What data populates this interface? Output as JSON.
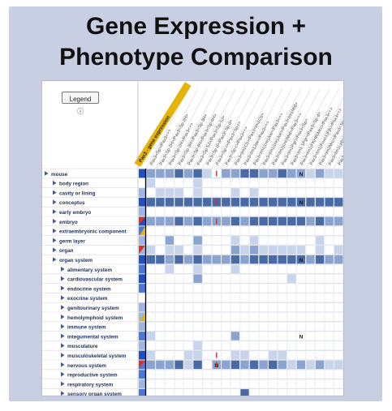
{
  "title_line1": "Gene Expression +",
  "title_line2": "Phenotype Comparison",
  "legend_label": "Legend ⓘ",
  "highlight_label": "Pax3 - gene expression",
  "column_labels": [
    "Pax3<Sp>/Pax3<+>",
    "Pax3<Sp-2H>/Pax3<Sp-2H>",
    "Pax3<Sp-2H>/Pax3<+>",
    "Pax3<Sp-3H>/Pax3<Sp-3H>",
    "Pax3<Sp-4H>/Pax3<Sp-4H>",
    "Pax3<Sp-5J>/Pax3<Sp-5J>",
    "Pax3<Sp-d>/Pax3<Sp-d>",
    "Pax3<Sp-r>/Pax3<Sp-r>",
    "Pax3<Sp-r>/Pax3<+>",
    "Pax3<tm1Cb>/Pax3<tm1Cb>",
    "Pax3<tm1Jae>/Pax3<+>",
    "Pax3<tm1(cre)Joe>/Pax3<+>",
    "Pax3<tm1(cre)Joe>/Pax3<tm1Mid>",
    "Pax3<tm2(cre)Mid>/Pax3<+>",
    "Pax3<tm1Pgr>/Pax3<Sp>",
    "Pax3<tm1.1Pgr>/Pax3<Sp-d>",
    "Pax3<tm1(FKHR)Mrc>/Pax3<+>",
    "Pax3<tm1(Foxo1)Fjb>/Pax3<+>",
    "Pax3<tm2Mrc>/Pax3<Sp>",
    "Pax3<tm1Lpb>/Pax3<Sp>",
    "Pax3<tm1Lpb>/Pax3<+>"
  ],
  "rows": [
    {
      "label": "mouse",
      "indent": 0,
      "expand_icon": "triangle-right-icon"
    },
    {
      "label": "body region",
      "indent": 1,
      "expand_icon": "triangle-right-icon"
    },
    {
      "label": "cavity or lining",
      "indent": 1,
      "expand_icon": "triangle-right-icon"
    },
    {
      "label": "conceptus",
      "indent": 1,
      "expand_icon": "triangle-right-icon"
    },
    {
      "label": "early embryo",
      "indent": 1,
      "expand_icon": "triangle-right-icon"
    },
    {
      "label": "embryo",
      "indent": 1,
      "expand_icon": "triangle-right-icon"
    },
    {
      "label": "extraembryonic component",
      "indent": 1,
      "expand_icon": "triangle-right-icon"
    },
    {
      "label": "germ layer",
      "indent": 1,
      "expand_icon": "triangle-right-icon"
    },
    {
      "label": "organ",
      "indent": 1,
      "expand_icon": "triangle-right-icon"
    },
    {
      "label": "organ system",
      "indent": 1,
      "expand_icon": "triangle-right-icon"
    },
    {
      "label": "alimentary system",
      "indent": 2,
      "expand_icon": "triangle-right-icon"
    },
    {
      "label": "cardiovascular system",
      "indent": 2,
      "expand_icon": "triangle-right-icon"
    },
    {
      "label": "endocrine system",
      "indent": 2,
      "expand_icon": "triangle-right-icon"
    },
    {
      "label": "exocrine system",
      "indent": 2,
      "expand_icon": "triangle-right-icon"
    },
    {
      "label": "genitourinary system",
      "indent": 2,
      "expand_icon": "triangle-right-icon"
    },
    {
      "label": "hemolymphoid system",
      "indent": 2,
      "expand_icon": "triangle-right-icon"
    },
    {
      "label": "immune system",
      "indent": 2,
      "expand_icon": "triangle-right-icon"
    },
    {
      "label": "integumental system",
      "indent": 2,
      "expand_icon": "triangle-right-icon"
    },
    {
      "label": "musculature",
      "indent": 2,
      "expand_icon": "triangle-right-icon"
    },
    {
      "label": "musculoskeletal system",
      "indent": 2,
      "expand_icon": "triangle-right-icon"
    },
    {
      "label": "nervous system",
      "indent": 2,
      "expand_icon": "triangle-right-icon"
    },
    {
      "label": "reproductive system",
      "indent": 2,
      "expand_icon": "triangle-right-icon"
    },
    {
      "label": "respiratory system",
      "indent": 2,
      "expand_icon": "triangle-right-icon"
    },
    {
      "label": "sensory organ system",
      "indent": 2,
      "expand_icon": "triangle-right-icon"
    }
  ],
  "expression_levels": [
    3,
    0,
    1,
    3,
    1,
    3,
    2,
    1,
    1,
    3,
    2,
    3,
    2,
    0,
    1,
    1,
    1,
    2,
    1,
    3,
    2,
    2,
    1,
    2
  ],
  "triangle_rows": [
    5,
    8,
    20
  ],
  "half_rows": [
    6,
    15
  ],
  "matrix": [
    [
      2,
      2,
      2,
      3,
      2,
      3,
      1,
      0,
      2,
      2,
      3,
      3,
      2,
      2,
      3,
      2,
      2,
      1,
      2,
      1,
      1
    ],
    [
      1,
      0,
      0,
      0,
      0,
      1,
      0,
      0,
      0,
      0,
      0,
      0,
      0,
      0,
      0,
      0,
      0,
      0,
      0,
      0,
      0
    ],
    [
      0,
      1,
      1,
      1,
      0,
      1,
      0,
      0,
      0,
      1,
      0,
      1,
      0,
      0,
      0,
      0,
      0,
      0,
      0,
      0,
      0
    ],
    [
      3,
      3,
      3,
      3,
      3,
      3,
      3,
      3,
      3,
      3,
      3,
      3,
      3,
      3,
      3,
      3,
      3,
      3,
      3,
      3,
      3
    ],
    [
      0,
      0,
      0,
      0,
      0,
      0,
      0,
      0,
      0,
      0,
      0,
      0,
      0,
      0,
      0,
      0,
      0,
      0,
      0,
      0,
      0
    ],
    [
      2,
      2,
      2,
      3,
      2,
      3,
      2,
      2,
      2,
      3,
      2,
      3,
      3,
      3,
      3,
      3,
      3,
      2,
      3,
      2,
      2
    ],
    [
      0,
      0,
      0,
      0,
      0,
      0,
      0,
      0,
      0,
      0,
      0,
      0,
      0,
      0,
      0,
      0,
      0,
      0,
      0,
      0,
      0
    ],
    [
      0,
      0,
      2,
      0,
      0,
      2,
      0,
      0,
      0,
      1,
      0,
      1,
      0,
      0,
      0,
      0,
      0,
      0,
      1,
      0,
      0
    ],
    [
      1,
      0,
      1,
      1,
      0,
      1,
      0,
      0,
      0,
      2,
      1,
      2,
      1,
      1,
      1,
      1,
      1,
      0,
      1,
      0,
      1
    ],
    [
      3,
      3,
      2,
      3,
      2,
      3,
      2,
      2,
      2,
      3,
      2,
      3,
      3,
      3,
      3,
      3,
      3,
      2,
      3,
      2,
      2
    ],
    [
      0,
      0,
      1,
      0,
      0,
      1,
      0,
      0,
      0,
      1,
      0,
      0,
      0,
      0,
      0,
      0,
      0,
      0,
      0,
      0,
      0
    ],
    [
      0,
      0,
      0,
      0,
      0,
      2,
      0,
      0,
      0,
      0,
      0,
      0,
      0,
      0,
      0,
      1,
      0,
      0,
      0,
      0,
      0
    ],
    [
      0,
      0,
      0,
      0,
      0,
      0,
      0,
      0,
      0,
      0,
      0,
      0,
      0,
      0,
      0,
      0,
      0,
      0,
      0,
      0,
      0
    ],
    [
      0,
      0,
      0,
      0,
      0,
      0,
      0,
      0,
      0,
      0,
      0,
      0,
      0,
      0,
      0,
      0,
      0,
      0,
      0,
      0,
      0
    ],
    [
      0,
      0,
      0,
      0,
      0,
      0,
      0,
      0,
      0,
      0,
      0,
      0,
      0,
      0,
      0,
      0,
      0,
      0,
      0,
      0,
      0
    ],
    [
      0,
      0,
      0,
      0,
      0,
      0,
      0,
      0,
      0,
      0,
      0,
      0,
      0,
      0,
      0,
      0,
      0,
      0,
      0,
      0,
      0
    ],
    [
      0,
      0,
      0,
      0,
      0,
      0,
      0,
      0,
      0,
      0,
      0,
      0,
      0,
      0,
      0,
      0,
      0,
      0,
      0,
      0,
      0
    ],
    [
      1,
      0,
      0,
      0,
      0,
      0,
      0,
      0,
      0,
      2,
      0,
      0,
      0,
      0,
      0,
      0,
      0,
      0,
      0,
      0,
      0
    ],
    [
      0,
      0,
      0,
      0,
      0,
      1,
      0,
      0,
      0,
      0,
      0,
      0,
      0,
      0,
      0,
      0,
      0,
      0,
      0,
      0,
      0
    ],
    [
      1,
      0,
      0,
      0,
      1,
      1,
      0,
      0,
      0,
      1,
      1,
      0,
      0,
      1,
      1,
      0,
      0,
      0,
      0,
      0,
      0
    ],
    [
      2,
      2,
      2,
      3,
      1,
      3,
      0,
      2,
      2,
      3,
      2,
      3,
      2,
      3,
      2,
      1,
      2,
      1,
      2,
      1,
      1
    ],
    [
      0,
      0,
      0,
      0,
      0,
      0,
      0,
      0,
      0,
      0,
      0,
      0,
      0,
      0,
      0,
      0,
      0,
      0,
      0,
      0,
      0
    ],
    [
      0,
      0,
      0,
      0,
      0,
      0,
      0,
      0,
      0,
      0,
      0,
      0,
      0,
      0,
      0,
      0,
      0,
      0,
      0,
      0,
      0
    ],
    [
      0,
      0,
      0,
      0,
      0,
      0,
      0,
      0,
      0,
      0,
      3,
      0,
      0,
      0,
      0,
      0,
      0,
      0,
      0,
      0,
      0
    ]
  ],
  "n_marks": [
    [
      0,
      16
    ],
    [
      3,
      16
    ],
    [
      9,
      16
    ],
    [
      17,
      16
    ],
    [
      20,
      7
    ]
  ],
  "red_marks": [
    [
      0,
      7
    ],
    [
      3,
      7
    ],
    [
      5,
      7
    ],
    [
      19,
      7
    ],
    [
      20,
      7
    ]
  ],
  "colors": {
    "panel_bg": "#c9cfe3",
    "expression_blue": "#1f4fbf",
    "highlight_gold": "#e4b40a",
    "triangle_red": "#d9342a",
    "mark_red": "#c0392b",
    "level_1": "#c7d4ea",
    "level_2": "#8ba3cf",
    "level_3": "#4a6aa5",
    "row_line": "#d5dae6",
    "tree_arrow": "#3a5ba0"
  }
}
